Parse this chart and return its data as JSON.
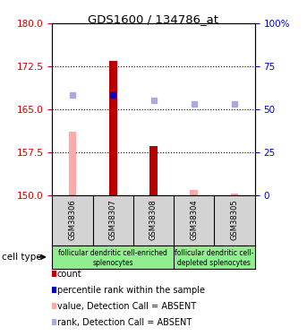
{
  "title": "GDS1600 / 134786_at",
  "samples": [
    "GSM38306",
    "GSM38307",
    "GSM38308",
    "GSM38304",
    "GSM38305"
  ],
  "ylim_left": [
    150,
    180
  ],
  "ylim_right": [
    0,
    100
  ],
  "yticks_left": [
    150,
    157.5,
    165,
    172.5,
    180
  ],
  "yticks_right": [
    0,
    25,
    50,
    75,
    100
  ],
  "yticklabels_right": [
    "0",
    "25",
    "50",
    "75",
    "100%"
  ],
  "counts": [
    null,
    173.5,
    158.5,
    null,
    null
  ],
  "values_absent": [
    161.0,
    null,
    null,
    150.8,
    150.2
  ],
  "ranks_present": [
    null,
    167.5,
    null,
    null,
    null
  ],
  "ranks_absent": [
    167.5,
    null,
    166.5,
    166.0,
    166.0
  ],
  "count_color": "#bb0000",
  "rank_present_color": "#0000cc",
  "value_absent_color": "#ffaaaa",
  "rank_absent_color": "#aaaadd",
  "bar_base": 150,
  "group1_samples": [
    0,
    1,
    2
  ],
  "group2_samples": [
    3,
    4
  ],
  "group1_label_line1": "follicular dendritic cell-enriched",
  "group1_label_line2": "splenocytes",
  "group2_label_line1": "follicular dendritic cell-",
  "group2_label_line2": "depleted splenocytes",
  "group_color": "#90ee90",
  "sample_bg_color": "#d3d3d3",
  "legend_items": [
    {
      "color": "#bb0000",
      "label": "count"
    },
    {
      "color": "#0000cc",
      "label": "percentile rank within the sample"
    },
    {
      "color": "#ffaaaa",
      "label": "value, Detection Call = ABSENT"
    },
    {
      "color": "#aaaadd",
      "label": "rank, Detection Call = ABSENT"
    }
  ],
  "tick_color_left": "#cc0000",
  "tick_color_right": "#0000cc",
  "bar_width": 0.32
}
